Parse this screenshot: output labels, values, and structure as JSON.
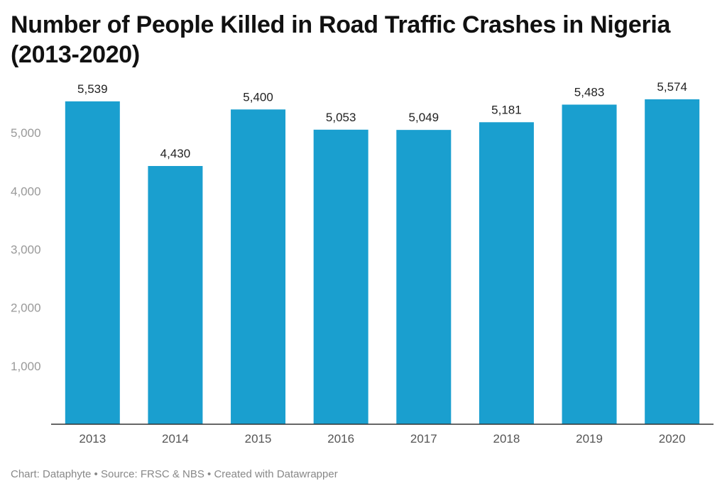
{
  "title": "Number of People Killed in Road Traffic Crashes in Nigeria (2013-2020)",
  "footer": "Chart: Dataphyte • Source: FRSC & NBS • Created with Datawrapper",
  "colors": {
    "bar": "#1a9fcf",
    "tick": "#999999",
    "label": "#222222",
    "axis": "#333333"
  },
  "chart_data": {
    "type": "bar",
    "title": "Number of People Killed in Road Traffic Crashes in Nigeria (2013-2020)",
    "xlabel": "",
    "ylabel": "",
    "categories": [
      "2013",
      "2014",
      "2015",
      "2016",
      "2017",
      "2018",
      "2019",
      "2020"
    ],
    "values": [
      5539,
      4430,
      5400,
      5053,
      5049,
      5181,
      5483,
      5574
    ],
    "value_labels": [
      "5,539",
      "4,430",
      "5,400",
      "5,053",
      "5,049",
      "5,181",
      "5,483",
      "5,574"
    ],
    "yticks": [
      1000,
      2000,
      3000,
      4000,
      5000
    ],
    "ytick_labels": [
      "1,000",
      "2,000",
      "3,000",
      "4,000",
      "5,000"
    ],
    "ylim": [
      0,
      5574
    ],
    "grid": false,
    "legend": "none"
  }
}
